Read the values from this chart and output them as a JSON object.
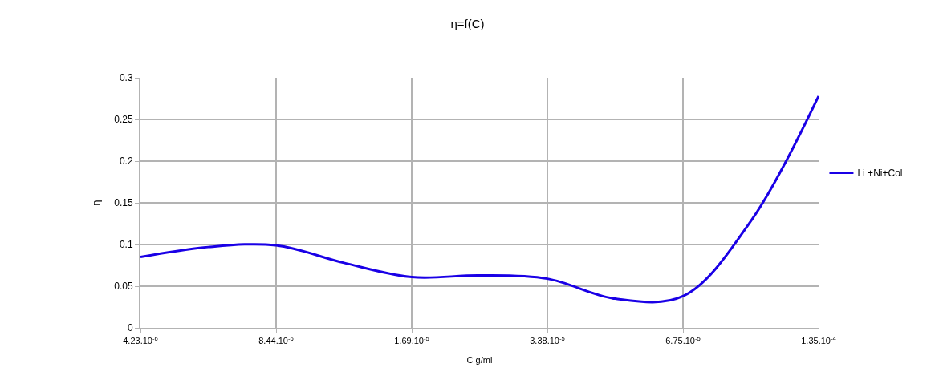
{
  "chart_data": {
    "type": "line",
    "title": "η=f(C)",
    "xlabel": "C g/ml",
    "ylabel": "η",
    "categories": [
      "4.23.10$^{-6}$",
      null,
      "8.44.10$^{-6}$",
      null,
      "1.69.10$^{-5}$",
      null,
      "3.38.10$^{-5}$",
      null,
      "6.75.10$^{-5}$",
      null,
      "1.35.10$^{-4}$"
    ],
    "series": [
      {
        "name": "Li +Ni+Col",
        "color": "#1a00e6",
        "values": [
          0.085,
          0.097,
          0.099,
          0.078,
          0.061,
          0.063,
          0.059,
          0.035,
          0.038,
          0.128,
          0.278
        ]
      }
    ],
    "ylim": [
      0,
      0.3
    ],
    "yticks": [
      0,
      0.05,
      0.1,
      0.15,
      0.2,
      0.25,
      0.3
    ],
    "grid": true,
    "legend": "right",
    "marker": "none",
    "line_style": "solid"
  }
}
